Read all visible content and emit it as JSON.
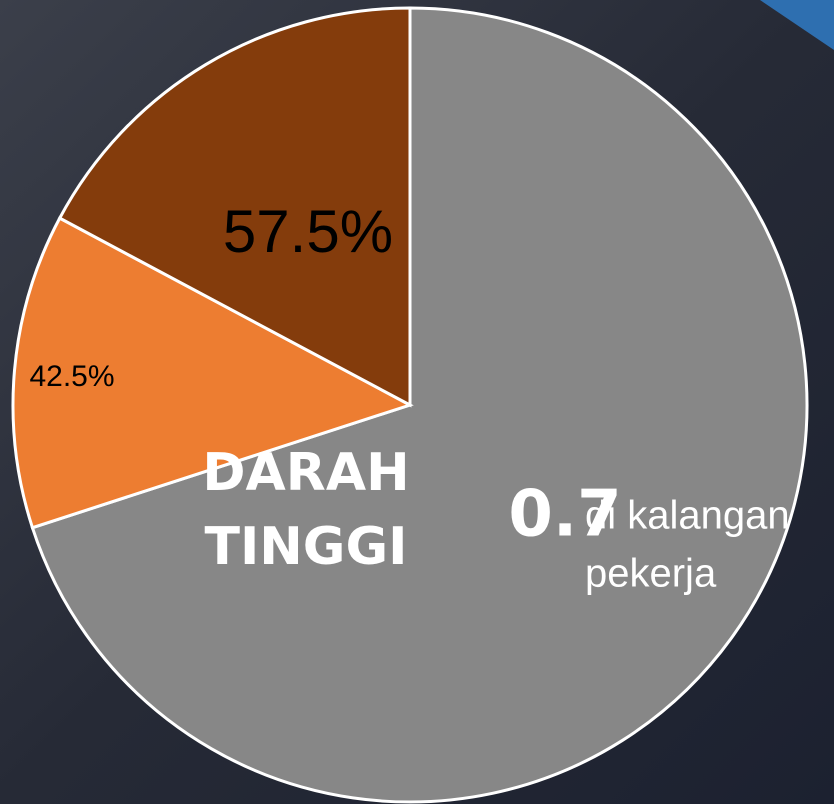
{
  "chart_data": {
    "type": "pie",
    "values": [
      70,
      12.8,
      17.2
    ],
    "colors": [
      "#878787",
      "#ed7d31",
      "#843c0c"
    ],
    "start_angle": 0,
    "direction": "clockwise",
    "annotations": [
      "0.7",
      "42.5%",
      "57.5%",
      "DARAH",
      "TINGGI",
      "di kalangan",
      "pekerja"
    ]
  }
}
